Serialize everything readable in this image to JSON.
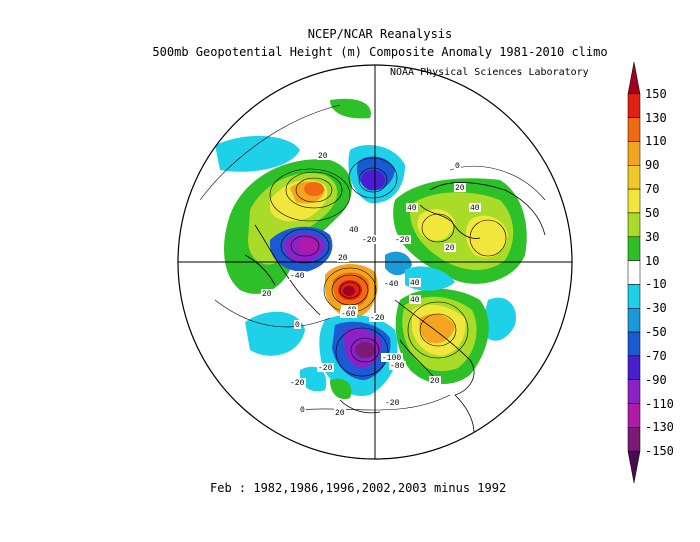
{
  "header": {
    "title_line1": "NCEP/NCAR Reanalysis",
    "title_line2": "500mb Geopotential Height (m) Composite Anomaly 1981-2010 climo",
    "credit": "NOAA Physical Sciences Laboratory"
  },
  "footer": {
    "caption": "Feb : 1982,1986,1996,2002,2003 minus 1992"
  },
  "map": {
    "projection": "north-polar-stereographic",
    "contour_labels": [
      "20",
      "20",
      "20",
      "20",
      "20",
      "-20",
      "-20",
      "-20",
      "-20",
      "-20",
      "40",
      "40",
      "40",
      "40",
      "40",
      "-40",
      "-40",
      "-40",
      "0",
      "0",
      "0",
      "-60",
      "-80",
      "-100",
      "20",
      "20",
      "-20"
    ]
  },
  "colorbar": {
    "labels": [
      "150",
      "130",
      "110",
      "90",
      "70",
      "50",
      "30",
      "10",
      "-10",
      "-30",
      "-50",
      "-70",
      "-90",
      "-110",
      "-130",
      "-150"
    ],
    "colors": [
      "#a0001c",
      "#e02010",
      "#f06a10",
      "#f3a51f",
      "#f0c82a",
      "#f0e63c",
      "#a8dc28",
      "#2dc028",
      "#ffffff",
      "#1ed0e8",
      "#1a9ad8",
      "#1c5ad4",
      "#4a1ed0",
      "#8a22c8",
      "#b01aa8",
      "#7a1a74",
      "#4a0a52"
    ]
  }
}
